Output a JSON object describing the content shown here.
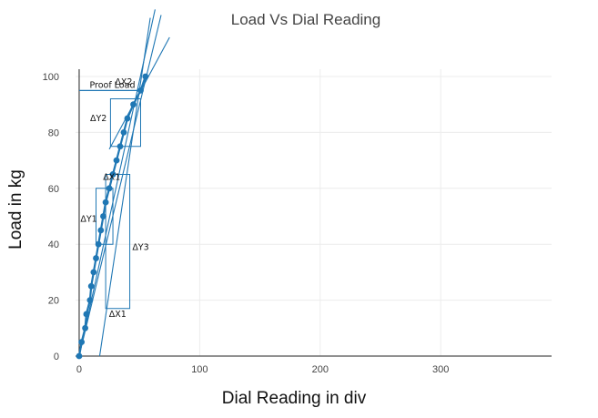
{
  "chart_data": {
    "type": "scatter",
    "title": "Load Vs Dial Reading",
    "xlabel": "Dial Reading in div",
    "ylabel": "Load in kg",
    "xlim": [
      -3,
      392
    ],
    "ylim": [
      0,
      100
    ],
    "xticks": [
      0,
      100,
      200,
      300
    ],
    "yticks": [
      0,
      20,
      40,
      60,
      80,
      100
    ],
    "grid": true,
    "color": "#1f77b4",
    "series": [
      {
        "values": [
          {
            "x": 0,
            "y": 0
          },
          {
            "x": 2,
            "y": 5
          },
          {
            "x": 5,
            "y": 10
          },
          {
            "x": 6,
            "y": 15
          },
          {
            "x": 9,
            "y": 20
          },
          {
            "x": 10,
            "y": 25
          },
          {
            "x": 12,
            "y": 30
          },
          {
            "x": 14,
            "y": 35
          },
          {
            "x": 16,
            "y": 40
          },
          {
            "x": 18,
            "y": 45
          },
          {
            "x": 20,
            "y": 50
          },
          {
            "x": 22,
            "y": 55
          },
          {
            "x": 25,
            "y": 60
          },
          {
            "x": 28,
            "y": 65
          },
          {
            "x": 31,
            "y": 70
          },
          {
            "x": 34,
            "y": 75
          },
          {
            "x": 37,
            "y": 80
          },
          {
            "x": 40,
            "y": 85
          },
          {
            "x": 45,
            "y": 90
          },
          {
            "x": 51,
            "y": 95
          },
          {
            "x": 55,
            "y": 100
          }
        ]
      }
    ],
    "lines": [
      {
        "x1": 0,
        "y1": 0,
        "x2": 63,
        "y2": 124
      },
      {
        "x1": 0,
        "y1": 0,
        "x2": 68,
        "y2": 122
      },
      {
        "x1": 17,
        "y1": 0,
        "x2": 59,
        "y2": 121
      },
      {
        "x1": 25,
        "y1": 74,
        "x2": 75,
        "y2": 114
      }
    ],
    "proof_load": {
      "label": "Proof Load",
      "y": 95,
      "x": 51
    },
    "annotations": [
      {
        "label": "ΔX2",
        "x": 37,
        "y": 97
      },
      {
        "label": "ΔY2",
        "x": 16,
        "y": 84
      },
      {
        "label": "ΔX1",
        "x": 27,
        "y": 63
      },
      {
        "label": "ΔY1",
        "x": 8,
        "y": 48
      },
      {
        "label": "ΔY3",
        "x": 51,
        "y": 38
      },
      {
        "label": "ΔX1",
        "x": 32,
        "y": 14
      }
    ],
    "boxes": [
      {
        "x0": 26,
        "x1": 51,
        "y0": 75,
        "y1": 92
      },
      {
        "x0": 14,
        "x1": 28,
        "y0": 40,
        "y1": 60
      },
      {
        "x0": 22,
        "x1": 42,
        "y0": 17,
        "y1": 65
      }
    ]
  }
}
